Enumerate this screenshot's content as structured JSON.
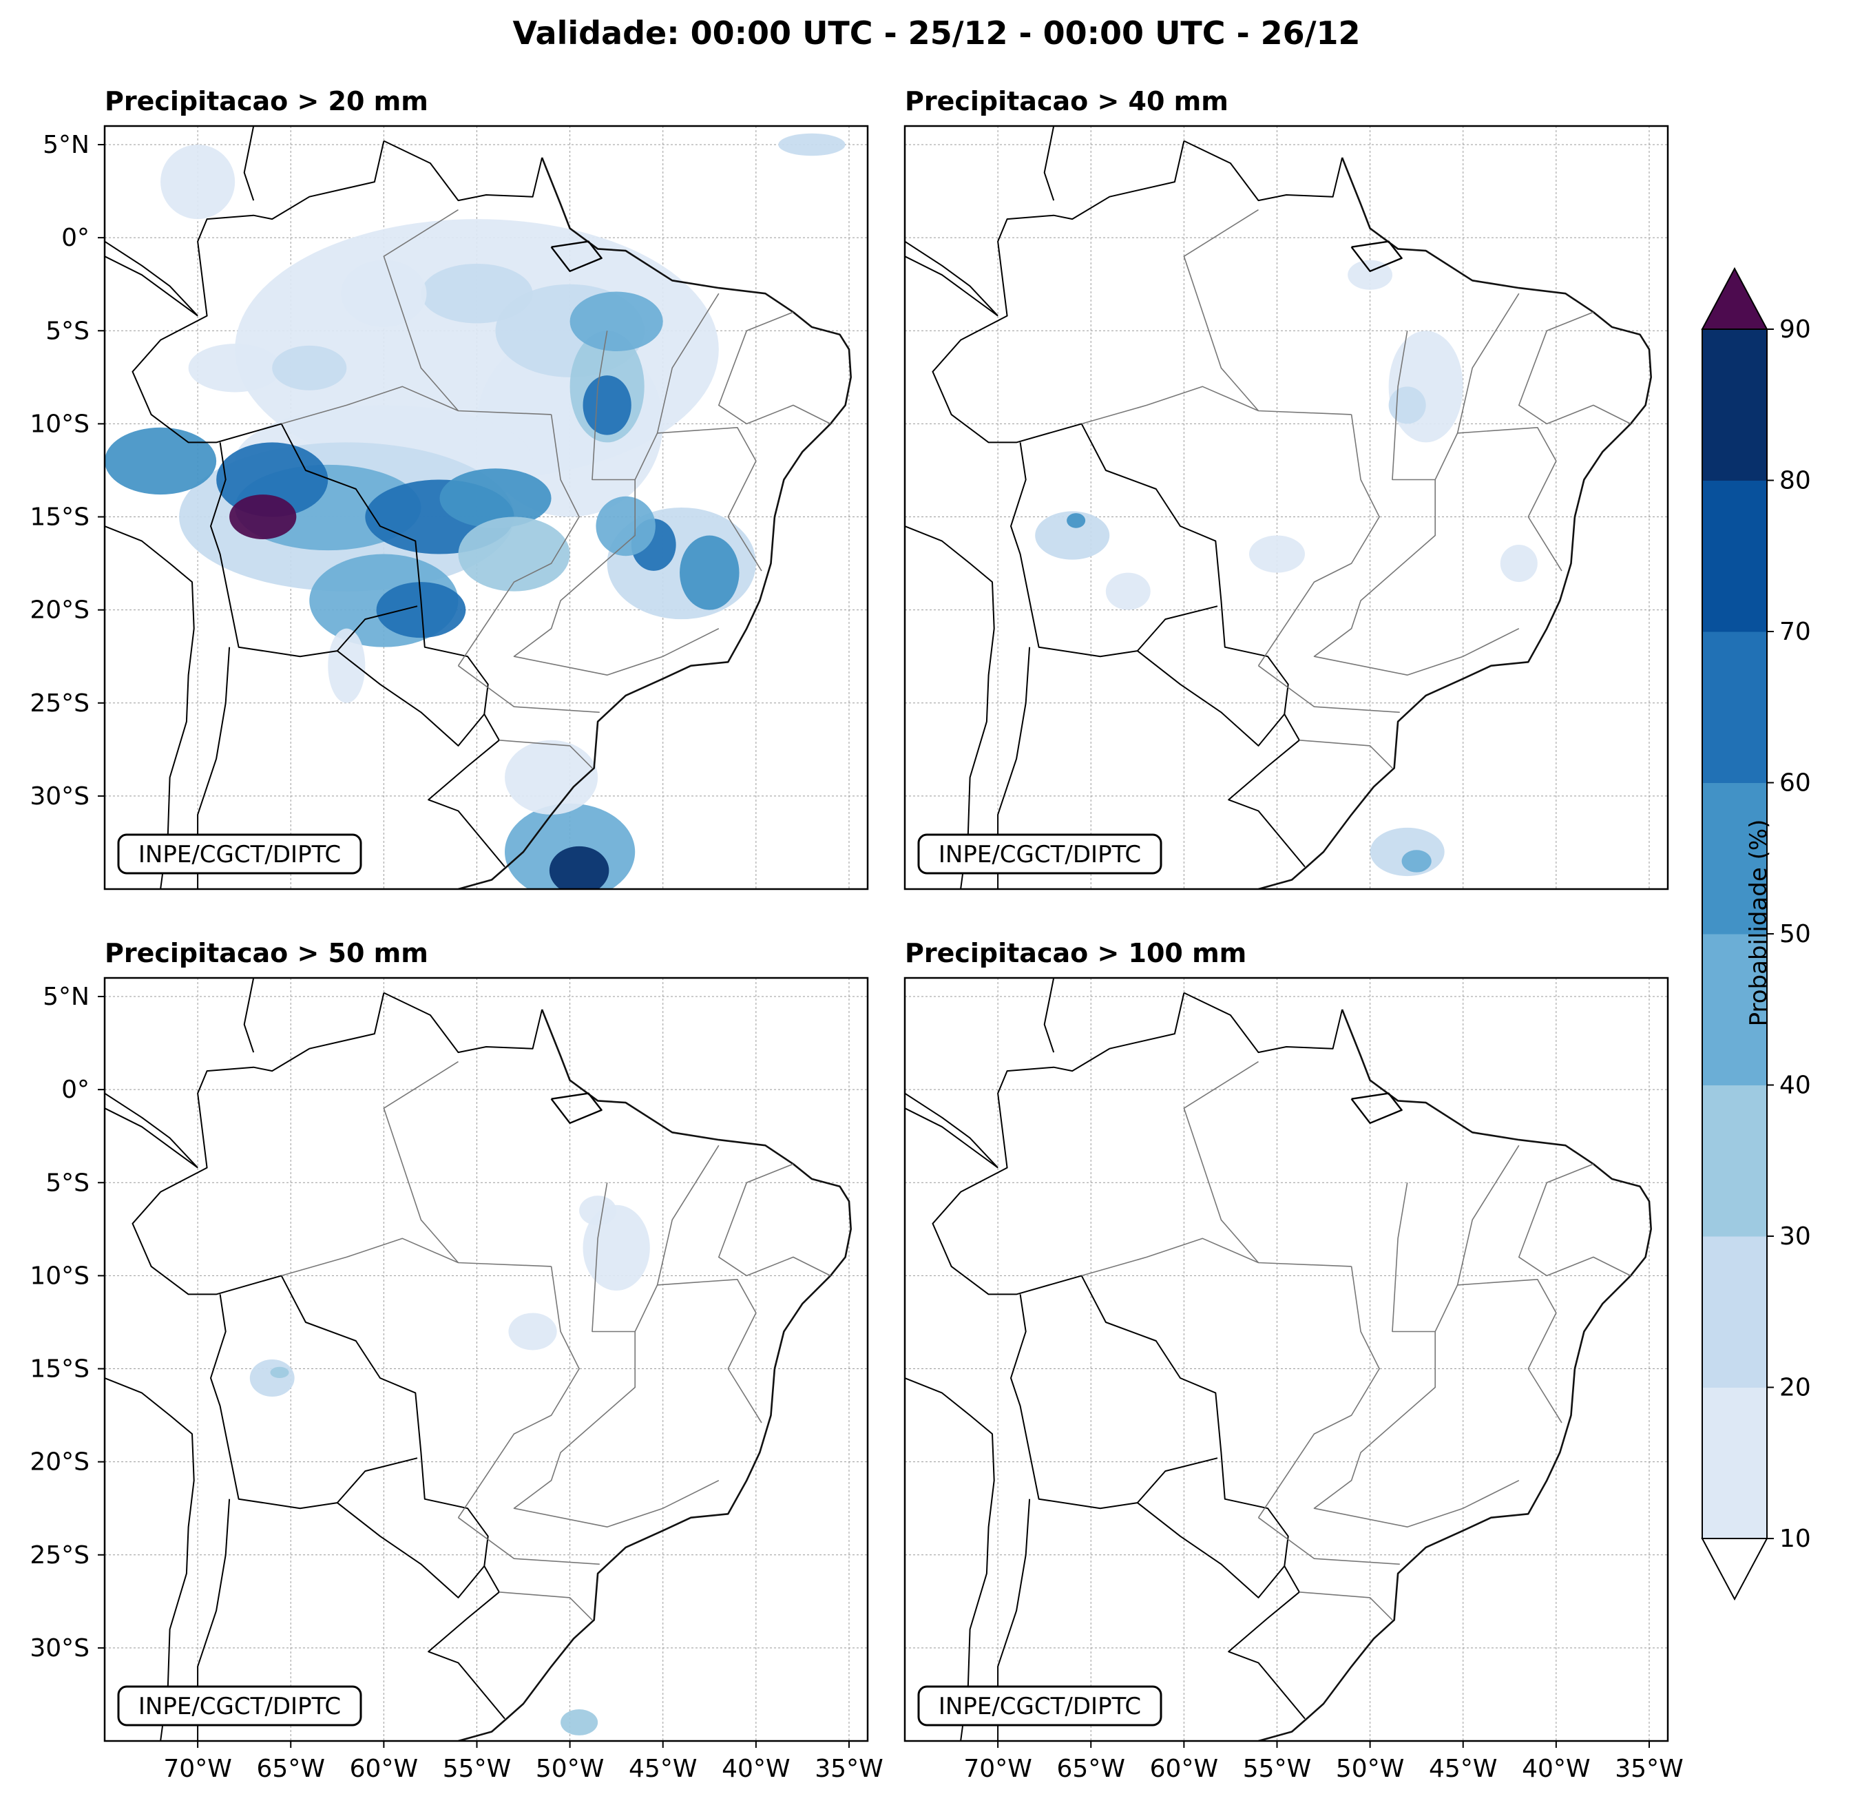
{
  "title": "Validade: 00:00 UTC - 25/12 - 00:00 UTC - 26/12",
  "panels": [
    {
      "id": "p20",
      "title": "Precipitacao > 20 mm",
      "credit": "INPE/CGCT/DIPTC"
    },
    {
      "id": "p40",
      "title": "Precipitacao > 40 mm",
      "credit": "INPE/CGCT/DIPTC"
    },
    {
      "id": "p50",
      "title": "Precipitacao > 50 mm",
      "credit": "INPE/CGCT/DIPTC"
    },
    {
      "id": "p100",
      "title": "Precipitacao > 100 mm",
      "credit": "INPE/CGCT/DIPTC"
    }
  ],
  "map": {
    "lon_ticks": [
      "70°W",
      "65°W",
      "60°W",
      "55°W",
      "50°W",
      "45°W",
      "40°W",
      "35°W"
    ],
    "lat_ticks": [
      "5°N",
      "0°",
      "5°S",
      "10°S",
      "15°S",
      "20°S",
      "25°S",
      "30°S"
    ],
    "lon_range": [
      -75,
      -34
    ],
    "lat_range": [
      -35,
      6
    ]
  },
  "colorbar": {
    "label": "Probabilidade (%)",
    "ticks": [
      "10",
      "20",
      "30",
      "40",
      "50",
      "60",
      "70",
      "80",
      "90"
    ],
    "colors": [
      "#dde8f5",
      "#c6dbef",
      "#9ecae1",
      "#6baed6",
      "#4292c6",
      "#2171b5",
      "#08519c",
      "#08306b"
    ],
    "extend_max_color": "#4d0b4f",
    "extend_min_color": "#ffffff"
  }
}
